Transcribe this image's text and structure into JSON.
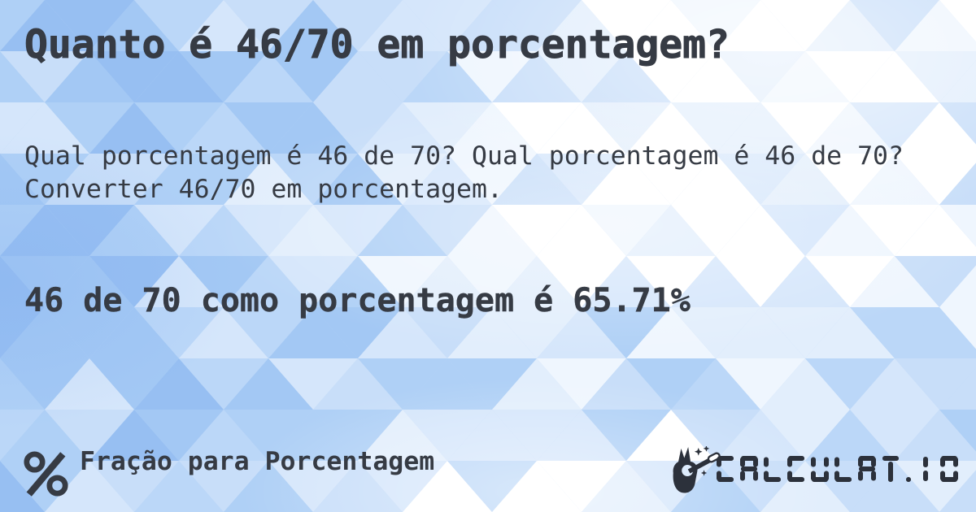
{
  "card": {
    "title": "Quanto é 46/70 em porcentagem?",
    "description": "Qual porcentagem é 46 de 70? Qual porcentagem é 46 de 70? Converter 46/70 em porcentagem.",
    "answer": "46 de 70 como porcentagem é 65.71%"
  },
  "footer": {
    "category": {
      "icon": "percent-icon",
      "label": "Fração para Porcentagem"
    },
    "brand": {
      "icon": "magic-wand-hand-icon",
      "name": "CALCULAT.IO"
    }
  },
  "colors": {
    "text": "#363b44",
    "brand": "#2c313b",
    "background_base": "#bdd8f8",
    "pattern_palette": [
      "#97bff2",
      "#a3c8f4",
      "#afd0f6",
      "#bbd7f8",
      "#c8def9",
      "#d5e6fb",
      "#e2eefc",
      "#eff6fe",
      "#ffffff"
    ]
  }
}
